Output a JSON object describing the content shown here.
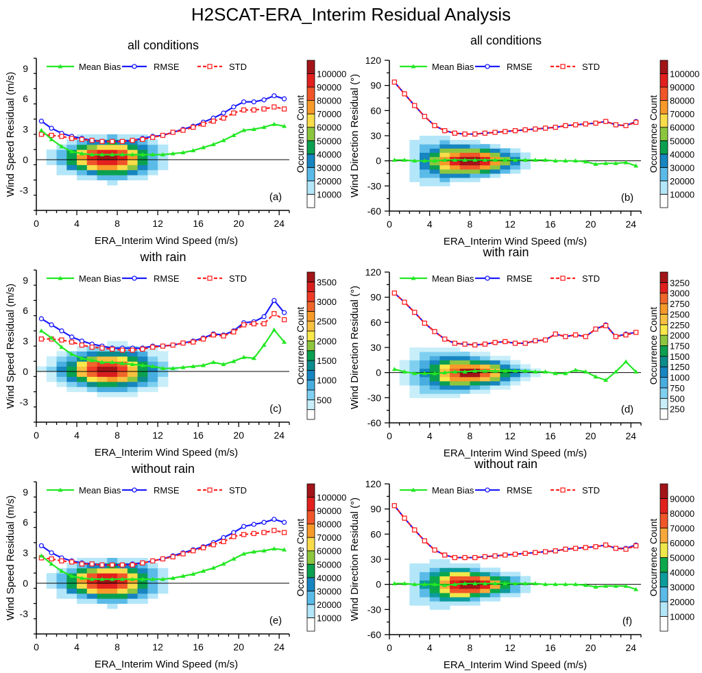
{
  "title": "H2SCAT-ERA_Interim Residual Analysis",
  "colors": {
    "mean_bias": "#22e822",
    "rmse": "#1a1aff",
    "std": "#ff2020"
  },
  "chart_data": [
    {
      "panel": "(a)",
      "type": "heatmap+line",
      "title": "all conditions",
      "xlabel": "ERA_Interim Wind Speed (m/s)",
      "ylabel": "Wind Speed Residual (m/s)",
      "xlim": [
        0,
        25
      ],
      "ylim": [
        -5,
        10
      ],
      "xticks": [
        0,
        4,
        8,
        12,
        16,
        20,
        24
      ],
      "yticks": [
        -3,
        0,
        3,
        6,
        9
      ],
      "legend_position": "top",
      "colorbar": {
        "label": "Occurrence Count",
        "labels": [
          "10000",
          "20000",
          "30000",
          "40000",
          "50000",
          "60000",
          "70000",
          "80000",
          "90000",
          "100000"
        ],
        "colors": [
          "#ffffff",
          "#b3e6f8",
          "#5bbbe8",
          "#1685c0",
          "#0aa050",
          "#8cc63f",
          "#f8dc4a",
          "#f79a2a",
          "#f0562a",
          "#e2201e",
          "#a31418"
        ]
      },
      "x": [
        0.5,
        1.5,
        2.5,
        3.5,
        4.5,
        5.5,
        6.5,
        7.5,
        8.5,
        9.5,
        10.5,
        11.5,
        12.5,
        13.5,
        14.5,
        15.5,
        16.5,
        17.5,
        18.5,
        19.5,
        20.5,
        21.5,
        22.5,
        23.5,
        24.5
      ],
      "series": [
        {
          "name": "Mean Bias",
          "values": [
            2.9,
            2.0,
            1.3,
            0.8,
            0.6,
            0.5,
            0.5,
            0.5,
            0.5,
            0.5,
            0.5,
            0.5,
            0.5,
            0.6,
            0.7,
            0.9,
            1.2,
            1.5,
            1.9,
            2.4,
            2.9,
            3.0,
            3.2,
            3.5,
            3.3
          ]
        },
        {
          "name": "RMSE",
          "values": [
            3.8,
            3.1,
            2.6,
            2.3,
            2.1,
            1.9,
            1.8,
            1.8,
            1.8,
            1.9,
            2.1,
            2.3,
            2.4,
            2.7,
            3.0,
            3.3,
            3.7,
            4.1,
            4.6,
            5.2,
            5.7,
            5.7,
            5.9,
            6.3,
            6.0
          ]
        },
        {
          "name": "STD",
          "values": [
            2.5,
            2.4,
            2.3,
            2.1,
            2.0,
            1.9,
            1.8,
            1.8,
            1.8,
            1.9,
            2.0,
            2.2,
            2.4,
            2.7,
            2.9,
            3.2,
            3.5,
            3.8,
            4.1,
            4.6,
            4.9,
            4.9,
            5.0,
            5.2,
            5.0
          ]
        }
      ]
    },
    {
      "panel": "(b)",
      "type": "heatmap+line",
      "title": "all conditions",
      "xlabel": "ERA_Interim Wind Speed (m/s)",
      "ylabel": "Wind Direction Residual (°)",
      "xlim": [
        0,
        25
      ],
      "ylim": [
        -60,
        120
      ],
      "xticks": [
        0,
        4,
        8,
        12,
        16,
        20,
        24
      ],
      "yticks": [
        -60,
        -30,
        0,
        30,
        60,
        90,
        120
      ],
      "legend_position": "top",
      "colorbar": {
        "label": "Occurrence Count",
        "labels": [
          "10000",
          "20000",
          "30000",
          "40000",
          "50000",
          "60000",
          "70000",
          "80000",
          "90000",
          "100000"
        ],
        "colors": [
          "#ffffff",
          "#b3e6f8",
          "#5bbbe8",
          "#1685c0",
          "#0aa050",
          "#8cc63f",
          "#f8dc4a",
          "#f79a2a",
          "#f0562a",
          "#e2201e",
          "#a31418"
        ]
      },
      "x": [
        0.5,
        1.5,
        2.5,
        3.5,
        4.5,
        5.5,
        6.5,
        7.5,
        8.5,
        9.5,
        10.5,
        11.5,
        12.5,
        13.5,
        14.5,
        15.5,
        16.5,
        17.5,
        18.5,
        19.5,
        20.5,
        21.5,
        22.5,
        23.5,
        24.5
      ],
      "series": [
        {
          "name": "Mean Bias",
          "values": [
            1,
            1,
            0,
            0,
            0,
            1,
            1,
            1,
            1,
            1,
            1,
            1,
            1,
            1,
            1,
            1,
            0,
            0,
            0,
            -1,
            -4,
            -3,
            -3,
            -2,
            -6
          ]
        },
        {
          "name": "RMSE",
          "values": [
            94,
            80,
            66,
            53,
            42,
            36,
            33,
            32,
            32,
            33,
            34,
            35,
            36,
            37,
            38,
            39,
            40,
            42,
            43,
            44,
            45,
            47,
            43,
            42,
            47
          ]
        },
        {
          "name": "STD",
          "values": [
            94,
            80,
            66,
            53,
            42,
            36,
            33,
            32,
            32,
            33,
            34,
            35,
            36,
            37,
            38,
            39,
            40,
            42,
            43,
            44,
            45,
            47,
            43,
            42,
            46
          ]
        }
      ]
    },
    {
      "panel": "(c)",
      "type": "heatmap+line",
      "title": "with rain",
      "xlabel": "ERA_Interim Wind Speed (m/s)",
      "ylabel": "Wind Speed Residual (m/s)",
      "xlim": [
        0,
        25
      ],
      "ylim": [
        -5,
        10
      ],
      "xticks": [
        0,
        4,
        8,
        12,
        16,
        20,
        24
      ],
      "yticks": [
        -3,
        0,
        3,
        6,
        9
      ],
      "legend_position": "top",
      "colorbar": {
        "label": "Occurrence Count",
        "labels": [
          "",
          "500",
          "",
          "1000",
          "",
          "1500",
          "",
          "2000",
          "",
          "2500",
          "",
          "3000",
          "",
          "3500"
        ],
        "colors": [
          "#ffffff",
          "#c8eef9",
          "#7fd0f0",
          "#48ade0",
          "#1685c0",
          "#0c8c8c",
          "#0aa050",
          "#8cc63f",
          "#f8e84a",
          "#f8c040",
          "#f79a2a",
          "#f0662a",
          "#f03a28",
          "#d81e1e",
          "#a31418"
        ]
      },
      "x": [
        0.5,
        1.5,
        2.5,
        3.5,
        4.5,
        5.5,
        6.5,
        7.5,
        8.5,
        9.5,
        10.5,
        11.5,
        12.5,
        13.5,
        14.5,
        15.5,
        16.5,
        17.5,
        18.5,
        19.5,
        20.5,
        21.5,
        22.5,
        23.5,
        24.5
      ],
      "series": [
        {
          "name": "Mean Bias",
          "values": [
            4.0,
            3.3,
            2.4,
            1.7,
            1.3,
            1.1,
            0.9,
            0.9,
            0.8,
            0.7,
            0.6,
            0.5,
            0.3,
            0.3,
            0.4,
            0.5,
            0.6,
            0.9,
            0.7,
            1.0,
            1.4,
            1.3,
            2.6,
            4.1,
            2.9
          ]
        },
        {
          "name": "RMSE",
          "values": [
            5.2,
            4.6,
            4.0,
            3.4,
            3.0,
            2.7,
            2.5,
            2.3,
            2.3,
            2.3,
            2.3,
            2.5,
            2.5,
            2.6,
            2.8,
            3.0,
            3.3,
            3.7,
            3.6,
            4.0,
            4.8,
            4.9,
            5.4,
            7.0,
            5.8
          ]
        },
        {
          "name": "STD",
          "values": [
            3.2,
            3.2,
            3.1,
            2.9,
            2.6,
            2.4,
            2.3,
            2.2,
            2.1,
            2.1,
            2.2,
            2.4,
            2.5,
            2.6,
            2.8,
            2.9,
            3.2,
            3.6,
            3.5,
            3.9,
            4.6,
            4.7,
            4.7,
            5.7,
            5.1
          ]
        }
      ]
    },
    {
      "panel": "(d)",
      "type": "heatmap+line",
      "title": "with rain",
      "xlabel": "ERA_Interim Wind Speed (m/s)",
      "ylabel": "Wind Direction Residual (°)",
      "xlim": [
        0,
        25
      ],
      "ylim": [
        -60,
        120
      ],
      "xticks": [
        0,
        4,
        8,
        12,
        16,
        20,
        24
      ],
      "yticks": [
        -60,
        -30,
        0,
        30,
        60,
        90,
        120
      ],
      "legend_position": "top",
      "colorbar": {
        "label": "Occurrence Count",
        "labels": [
          "250",
          "500",
          "750",
          "1000",
          "1250",
          "1500",
          "1750",
          "2000",
          "2250",
          "2500",
          "2750",
          "3000",
          "3250"
        ],
        "colors": [
          "#ffffff",
          "#c8eef9",
          "#7fd0f0",
          "#48ade0",
          "#1685c0",
          "#0c8c8c",
          "#0aa050",
          "#8cc63f",
          "#f8e84a",
          "#f8c040",
          "#f79a2a",
          "#f0662a",
          "#e2201e",
          "#a31418"
        ]
      },
      "x": [
        0.5,
        1.5,
        2.5,
        3.5,
        4.5,
        5.5,
        6.5,
        7.5,
        8.5,
        9.5,
        10.5,
        11.5,
        12.5,
        13.5,
        14.5,
        15.5,
        16.5,
        17.5,
        18.5,
        19.5,
        20.5,
        21.5,
        22.5,
        23.5,
        24.5
      ],
      "series": [
        {
          "name": "Mean Bias",
          "values": [
            4,
            1,
            -1,
            -1,
            -1,
            0,
            1,
            1,
            2,
            2,
            2,
            2,
            2,
            2,
            1,
            1,
            -1,
            -1,
            3,
            1,
            -5,
            -9,
            1,
            13,
            1
          ]
        },
        {
          "name": "RMSE",
          "values": [
            95,
            84,
            72,
            59,
            49,
            40,
            35,
            34,
            33,
            34,
            36,
            37,
            35,
            35,
            38,
            39,
            46,
            43,
            45,
            43,
            52,
            57,
            43,
            46,
            48
          ]
        },
        {
          "name": "STD",
          "values": [
            95,
            84,
            72,
            59,
            49,
            40,
            35,
            34,
            33,
            34,
            36,
            37,
            35,
            35,
            38,
            39,
            46,
            43,
            45,
            43,
            52,
            56,
            43,
            45,
            48
          ]
        }
      ]
    },
    {
      "panel": "(e)",
      "type": "heatmap+line",
      "title": "without rain",
      "xlabel": "ERA_Interim Wind Speed (m/s)",
      "ylabel": "Wind Speed Residual (m/s)",
      "xlim": [
        0,
        25
      ],
      "ylim": [
        -5,
        10
      ],
      "xticks": [
        0,
        4,
        8,
        12,
        16,
        20,
        24
      ],
      "yticks": [
        -3,
        0,
        3,
        6,
        9
      ],
      "legend_position": "top",
      "colorbar": {
        "label": "Occurrence Count",
        "labels": [
          "10000",
          "20000",
          "30000",
          "40000",
          "50000",
          "60000",
          "70000",
          "80000",
          "90000",
          "100000"
        ],
        "colors": [
          "#ffffff",
          "#b3e6f8",
          "#5bbbe8",
          "#1685c0",
          "#0aa050",
          "#8cc63f",
          "#f8dc4a",
          "#f79a2a",
          "#f0562a",
          "#e2201e",
          "#a31418"
        ]
      },
      "x": [
        0.5,
        1.5,
        2.5,
        3.5,
        4.5,
        5.5,
        6.5,
        7.5,
        8.5,
        9.5,
        10.5,
        11.5,
        12.5,
        13.5,
        14.5,
        15.5,
        16.5,
        17.5,
        18.5,
        19.5,
        20.5,
        21.5,
        22.5,
        23.5,
        24.5
      ],
      "series": [
        {
          "name": "Mean Bias",
          "values": [
            2.7,
            1.9,
            1.2,
            0.7,
            0.5,
            0.4,
            0.4,
            0.4,
            0.4,
            0.4,
            0.4,
            0.4,
            0.4,
            0.5,
            0.7,
            0.9,
            1.2,
            1.5,
            1.9,
            2.4,
            2.9,
            3.1,
            3.2,
            3.4,
            3.3
          ]
        },
        {
          "name": "RMSE",
          "values": [
            3.7,
            3.0,
            2.5,
            2.2,
            2.0,
            1.9,
            1.8,
            1.8,
            1.8,
            1.9,
            2.0,
            2.2,
            2.4,
            2.7,
            3.0,
            3.3,
            3.6,
            4.0,
            4.5,
            5.0,
            5.6,
            5.8,
            6.0,
            6.3,
            6.0
          ]
        },
        {
          "name": "STD",
          "values": [
            2.5,
            2.4,
            2.2,
            2.1,
            1.9,
            1.9,
            1.8,
            1.8,
            1.8,
            1.8,
            2.0,
            2.2,
            2.4,
            2.6,
            2.9,
            3.2,
            3.5,
            3.8,
            4.1,
            4.6,
            4.8,
            4.9,
            5.0,
            5.2,
            5.0
          ]
        }
      ]
    },
    {
      "panel": "(f)",
      "type": "heatmap+line",
      "title": "without rain",
      "xlabel": "ERA_Interim Wind Speed (m/s)",
      "ylabel": "Wind Direction Residual (°)",
      "xlim": [
        0,
        25
      ],
      "ylim": [
        -60,
        120
      ],
      "xticks": [
        0,
        4,
        8,
        12,
        16,
        20,
        24
      ],
      "yticks": [
        -60,
        -30,
        0,
        30,
        60,
        90,
        120
      ],
      "legend_position": "top",
      "colorbar": {
        "label": "Occurrence Count",
        "labels": [
          "10000",
          "20000",
          "30000",
          "40000",
          "50000",
          "60000",
          "70000",
          "80000",
          "90000"
        ],
        "colors": [
          "#ffffff",
          "#b3e6f8",
          "#5bbbe8",
          "#0c9c9c",
          "#0aa84a",
          "#f0e84a",
          "#f8a83a",
          "#f0562a",
          "#e2201e",
          "#a31418"
        ]
      },
      "x": [
        0.5,
        1.5,
        2.5,
        3.5,
        4.5,
        5.5,
        6.5,
        7.5,
        8.5,
        9.5,
        10.5,
        11.5,
        12.5,
        13.5,
        14.5,
        15.5,
        16.5,
        17.5,
        18.5,
        19.5,
        20.5,
        21.5,
        22.5,
        23.5,
        24.5
      ],
      "series": [
        {
          "name": "Mean Bias",
          "values": [
            1,
            1,
            0,
            0,
            0,
            -1,
            0,
            1,
            1,
            1,
            1,
            1,
            1,
            1,
            1,
            0,
            0,
            0,
            0,
            -1,
            -3,
            -2,
            -2,
            -2,
            -6
          ]
        },
        {
          "name": "RMSE",
          "values": [
            94,
            79,
            65,
            52,
            41,
            35,
            32,
            32,
            32,
            33,
            34,
            35,
            36,
            37,
            38,
            39,
            40,
            42,
            43,
            44,
            45,
            47,
            43,
            43,
            47
          ]
        },
        {
          "name": "STD",
          "values": [
            94,
            79,
            65,
            52,
            41,
            35,
            32,
            32,
            32,
            33,
            34,
            35,
            36,
            37,
            38,
            39,
            40,
            42,
            43,
            44,
            45,
            47,
            43,
            42,
            46
          ]
        }
      ]
    }
  ]
}
